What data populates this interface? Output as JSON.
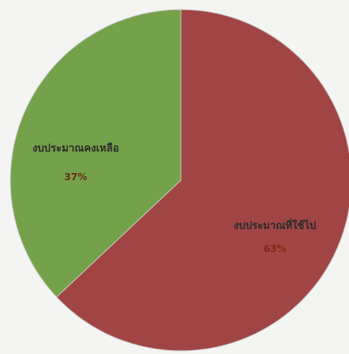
{
  "chart_data": {
    "type": "pie",
    "title": "",
    "slices": [
      {
        "label": "งบประมาณที่ใช้ไป",
        "value": 63,
        "value_label": "63%",
        "color": "#a04544"
      },
      {
        "label": "งบประมาณคงเหลือ",
        "value": 37,
        "value_label": "37%",
        "color": "#73a24b"
      }
    ],
    "start_angle_deg": 0,
    "direction": "clockwise",
    "legend": "none",
    "background": "#f4f4f2"
  }
}
